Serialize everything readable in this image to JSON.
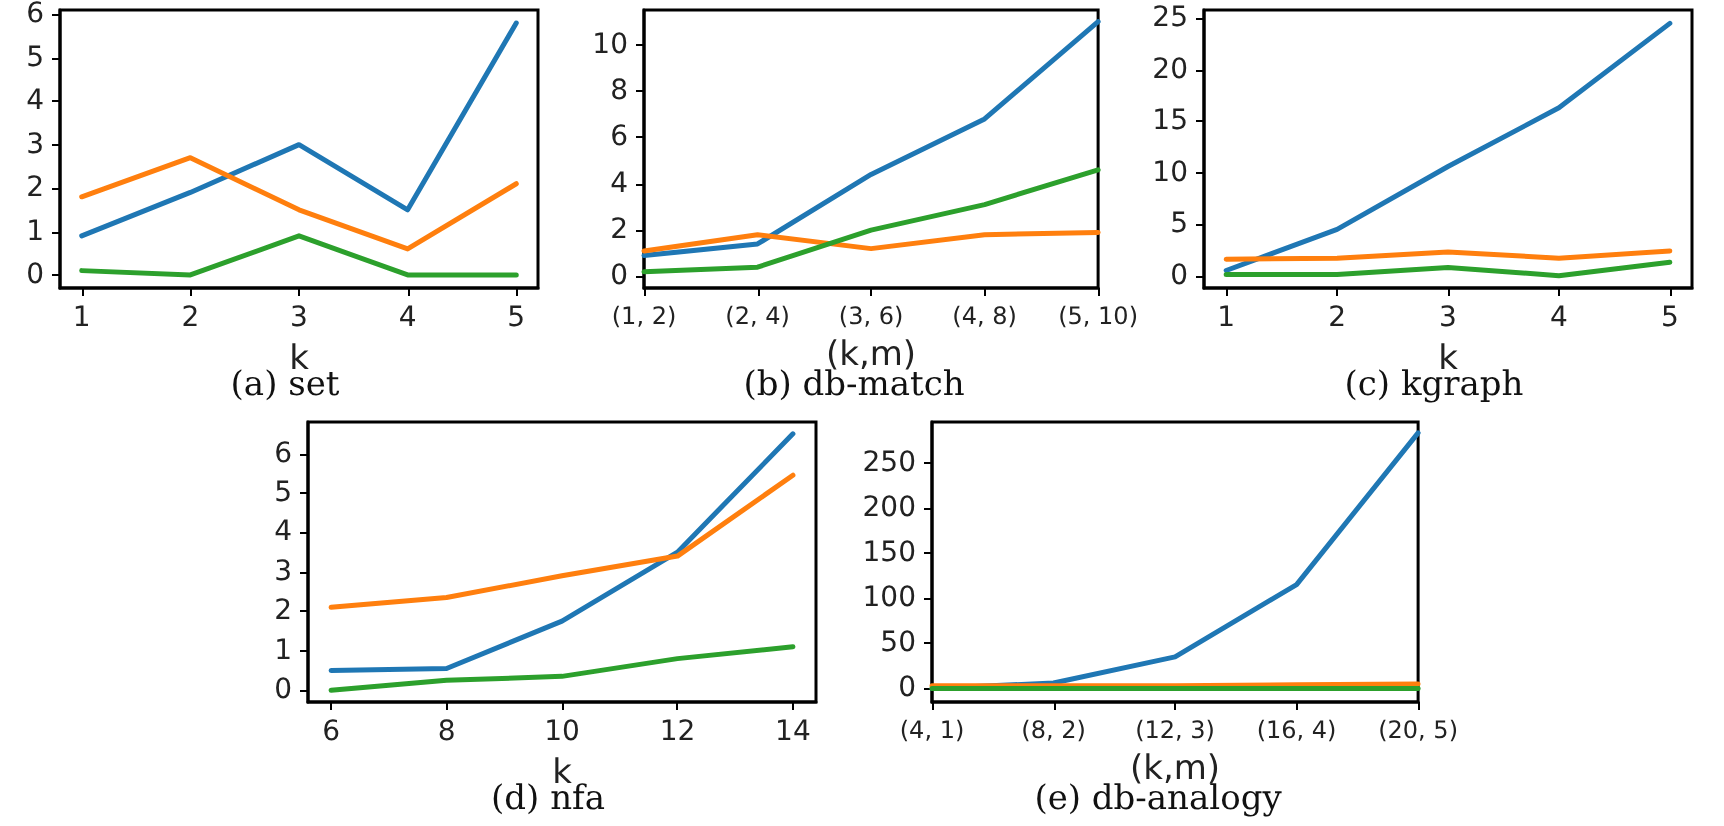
{
  "chart_data": [
    {
      "type": "line",
      "title": "(a) set",
      "xlabel": "k",
      "x": [
        1,
        2,
        3,
        4,
        5
      ],
      "xlim": [
        0.8,
        5.2
      ],
      "xticks": [
        1,
        2,
        3,
        4,
        5
      ],
      "ylim": [
        -0.3,
        6.1
      ],
      "yticks": [
        0,
        1,
        2,
        3,
        4,
        5,
        6
      ],
      "marker": "none",
      "line_style": "solid",
      "series": [
        {
          "color": "#1f77b4",
          "values": [
            0.9,
            1.9,
            3.0,
            1.5,
            5.8
          ]
        },
        {
          "color": "#ff7f0e",
          "values": [
            1.8,
            2.7,
            1.5,
            0.6,
            2.1
          ]
        },
        {
          "color": "#2ca02c",
          "values": [
            0.1,
            0,
            0.9,
            0,
            0
          ]
        }
      ]
    },
    {
      "type": "line",
      "title": "(b) db-match",
      "xlabel": "(k,m)",
      "categories": [
        "(1, 2)",
        "(2, 4)",
        "(3, 6)",
        "(4, 8)",
        "(5, 10)"
      ],
      "ylim": [
        -0.5,
        11.5
      ],
      "yticks": [
        0,
        2,
        4,
        6,
        8,
        10
      ],
      "marker": "none",
      "line_style": "solid",
      "series": [
        {
          "color": "#1f77b4",
          "values": [
            0.9,
            1.4,
            4.4,
            6.8,
            11.0
          ]
        },
        {
          "color": "#ff7f0e",
          "values": [
            1.1,
            1.8,
            1.2,
            1.8,
            1.9
          ]
        },
        {
          "color": "#2ca02c",
          "values": [
            0.2,
            0.4,
            2.0,
            3.1,
            4.6
          ]
        }
      ]
    },
    {
      "type": "line",
      "title": "(c) kgraph",
      "xlabel": "k",
      "x": [
        1,
        2,
        3,
        4,
        5
      ],
      "xlim": [
        0.8,
        5.2
      ],
      "xticks": [
        1,
        2,
        3,
        4,
        5
      ],
      "ylim": [
        -1.2,
        25.8
      ],
      "yticks": [
        0,
        5,
        10,
        15,
        20,
        25
      ],
      "marker": "none",
      "line_style": "solid",
      "series": [
        {
          "color": "#1f77b4",
          "values": [
            0.5,
            4.5,
            10.6,
            16.3,
            24.5
          ]
        },
        {
          "color": "#ff7f0e",
          "values": [
            1.6,
            1.7,
            2.3,
            1.7,
            2.4
          ]
        },
        {
          "color": "#2ca02c",
          "values": [
            0.1,
            0.1,
            0.8,
            0,
            1.3
          ]
        }
      ]
    },
    {
      "type": "line",
      "title": "(d) nfa",
      "xlabel": "k",
      "x": [
        6,
        8,
        10,
        12,
        14
      ],
      "xlim": [
        5.6,
        14.4
      ],
      "xticks": [
        6,
        8,
        10,
        12,
        14
      ],
      "ylim": [
        -0.3,
        6.8
      ],
      "yticks": [
        0,
        1,
        2,
        3,
        4,
        5,
        6
      ],
      "marker": "none",
      "line_style": "solid",
      "series": [
        {
          "color": "#1f77b4",
          "values": [
            0.5,
            0.55,
            1.75,
            3.5,
            6.5
          ]
        },
        {
          "color": "#ff7f0e",
          "values": [
            2.1,
            2.35,
            2.9,
            3.4,
            5.45
          ]
        },
        {
          "color": "#2ca02c",
          "values": [
            0,
            0.25,
            0.35,
            0.8,
            1.1
          ]
        }
      ]
    },
    {
      "type": "line",
      "title": "(e) db-analogy",
      "xlabel": "(k,m)",
      "categories": [
        "(4, 1)",
        "(8, 2)",
        "(12, 3)",
        "(16, 4)",
        "(20, 5)"
      ],
      "ylim": [
        -15,
        295
      ],
      "yticks": [
        0,
        50,
        100,
        150,
        200,
        250
      ],
      "marker": "none",
      "line_style": "solid",
      "series": [
        {
          "color": "#1f77b4",
          "values": [
            0,
            6,
            35,
            115,
            283
          ]
        },
        {
          "color": "#ff7f0e",
          "values": [
            3,
            3,
            3,
            4,
            5
          ]
        },
        {
          "color": "#2ca02c",
          "values": [
            0,
            0,
            0,
            0,
            0
          ]
        }
      ]
    }
  ]
}
